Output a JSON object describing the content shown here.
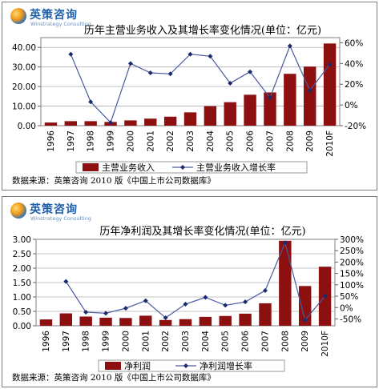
{
  "logo": {
    "cn": "英策咨询",
    "en": "Winstrategy Consulting"
  },
  "colors": {
    "bar": "#8c1010",
    "line": "#4a5a9e",
    "marker": "#1a2a6e"
  },
  "chart_data": [
    {
      "type": "bar",
      "title": "历年主营业务收入及其增长率变化情况(单位：亿元)",
      "source": "数据来源：英策咨询 2010 版《中国上市公司数据库》",
      "categories": [
        "1996",
        "1997",
        "1998",
        "1999",
        "2000",
        "2001",
        "2002",
        "2003",
        "2004",
        "2005",
        "2006",
        "2007",
        "2008",
        "2009",
        "2010F"
      ],
      "series": [
        {
          "name": "主营业务收入",
          "type": "bar",
          "axis": "left",
          "values": [
            1.6,
            2.3,
            2.3,
            1.9,
            2.7,
            3.6,
            4.6,
            6.8,
            10.0,
            12.0,
            15.8,
            17.0,
            26.5,
            30.2,
            42.0
          ]
        },
        {
          "name": "主营业务收入增长率",
          "type": "line",
          "axis": "right",
          "values": [
            null,
            49,
            3,
            -17,
            40,
            31,
            30,
            49,
            47,
            21,
            32,
            7,
            57,
            14,
            39
          ]
        }
      ],
      "ylim": [
        0,
        45
      ],
      "yticks": [
        "0.00",
        "10.00",
        "20.00",
        "30.00",
        "40.00"
      ],
      "y2lim": [
        -20,
        65
      ],
      "y2ticks": [
        "-20%",
        "0%",
        "20%",
        "40%",
        "60%"
      ],
      "legend": "bottom"
    },
    {
      "type": "bar",
      "title": "历年净利润及其增长率变化情况(单位：亿元)",
      "source": "数据来源：英策咨询 2010 版《中国上市公司数据库》",
      "categories": [
        "1996",
        "1997",
        "1998",
        "1999",
        "2000",
        "2001",
        "2002",
        "2003",
        "2004",
        "2005",
        "2006",
        "2007",
        "2008",
        "2009",
        "2010F"
      ],
      "series": [
        {
          "name": "净利润",
          "type": "bar",
          "axis": "left",
          "values": [
            0.22,
            0.43,
            0.32,
            0.28,
            0.27,
            0.35,
            0.2,
            0.23,
            0.31,
            0.34,
            0.42,
            0.78,
            2.95,
            1.38,
            2.05
          ]
        },
        {
          "name": "净利润增长率",
          "type": "line",
          "axis": "right",
          "values": [
            null,
            115,
            -20,
            -25,
            -3,
            30,
            -45,
            15,
            45,
            10,
            25,
            75,
            285,
            -55,
            50
          ]
        }
      ],
      "ylim": [
        0,
        3.0
      ],
      "yticks": [
        "0.00",
        "0.50",
        "1.00",
        "1.50",
        "2.00",
        "2.50",
        "3.00"
      ],
      "y2lim": [
        -80,
        300
      ],
      "y2ticks": [
        "-50%",
        "0%",
        "50%",
        "100%",
        "150%",
        "200%",
        "250%",
        "300%"
      ],
      "legend": "bottom"
    }
  ]
}
